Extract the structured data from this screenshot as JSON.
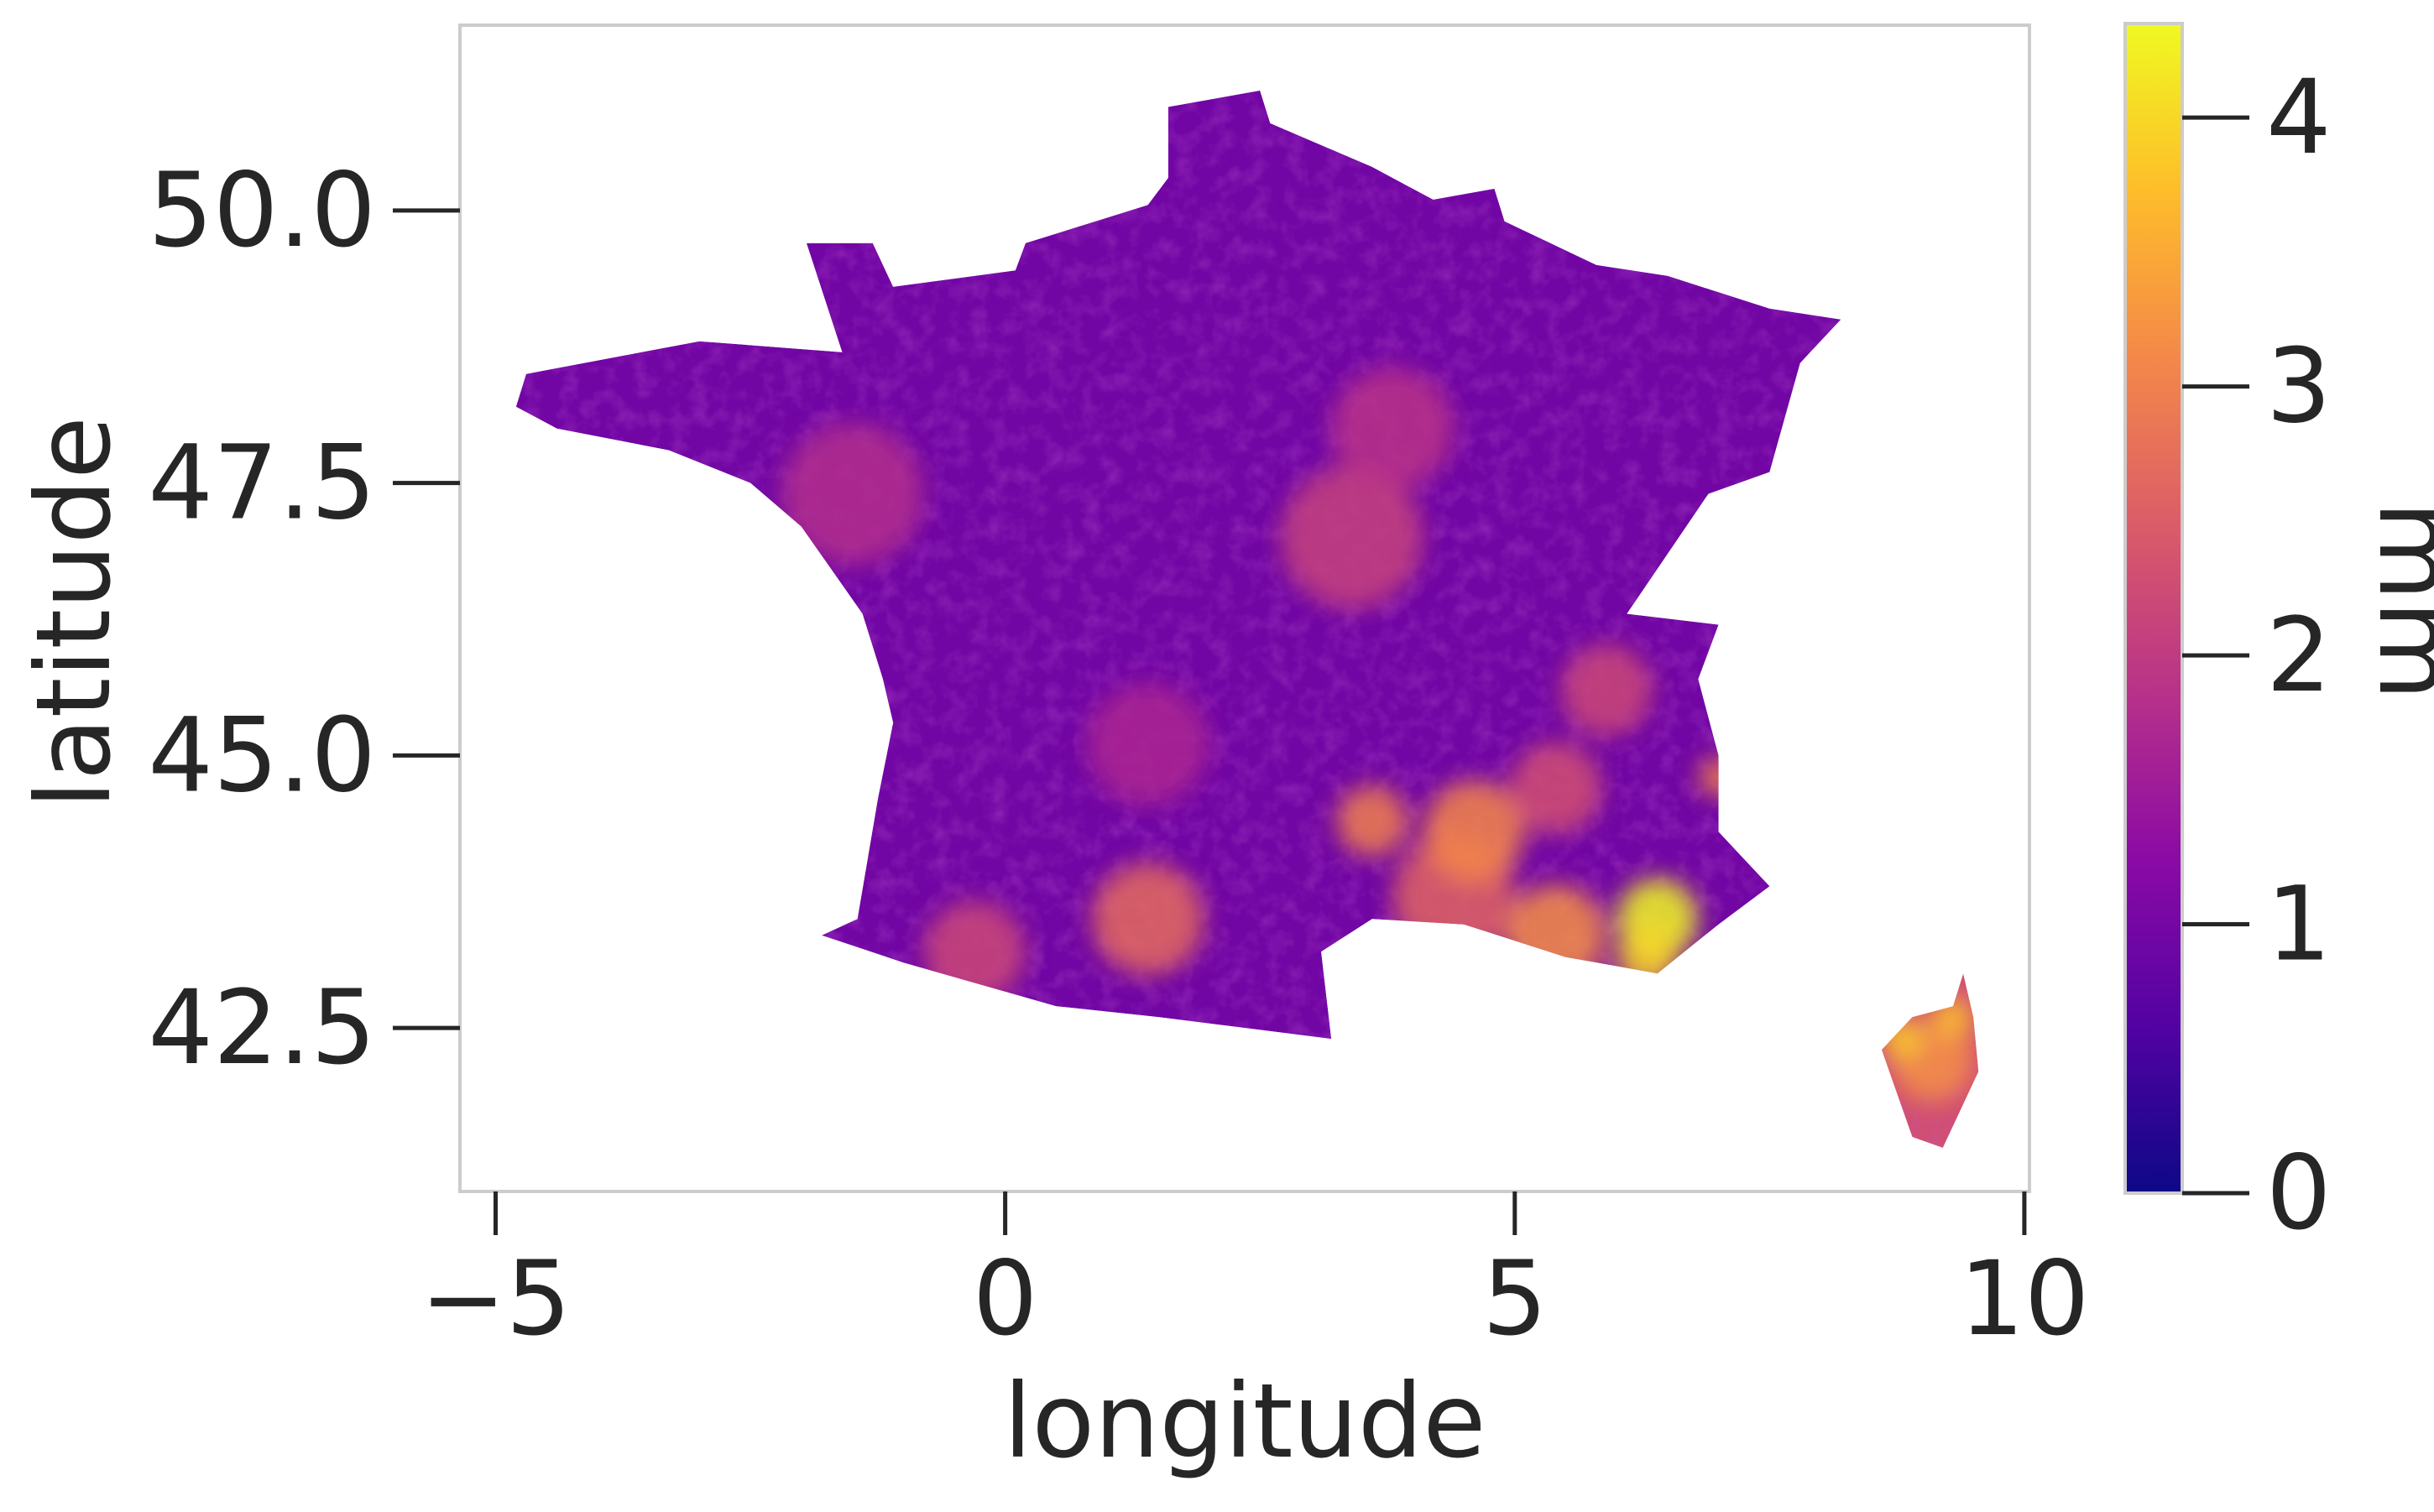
{
  "map": {
    "xlabel": "longitude",
    "ylabel": "latitude",
    "colorbar_label": "mm",
    "x_ticks": [
      {
        "value": -5,
        "label": "−5"
      },
      {
        "value": 0,
        "label": "0"
      },
      {
        "value": 5,
        "label": "5"
      },
      {
        "value": 10,
        "label": "10"
      }
    ],
    "y_ticks": [
      {
        "value": 42.5,
        "label": "42.5"
      },
      {
        "value": 45.0,
        "label": "45.0"
      },
      {
        "value": 47.5,
        "label": "47.5"
      },
      {
        "value": 50.0,
        "label": "50.0"
      }
    ],
    "colorbar_ticks": [
      {
        "value": 0,
        "label": "0"
      },
      {
        "value": 1,
        "label": "1"
      },
      {
        "value": 2,
        "label": "2"
      },
      {
        "value": 3,
        "label": "3"
      },
      {
        "value": 4,
        "label": "4"
      }
    ],
    "colorbar_range": [
      0,
      4.35
    ],
    "colormap": "plasma",
    "x_range": [
      -5.35,
      10.05
    ],
    "y_range": [
      41.0,
      51.7
    ],
    "colors": {
      "frame": "#cccccc",
      "text": "#262626",
      "colormap_stops": [
        "#0d0887",
        "#5302a3",
        "#8b0aa5",
        "#b83289",
        "#db5c68",
        "#f48849",
        "#febd2a",
        "#f0f921"
      ]
    },
    "regions": [
      {
        "name": "mainland-france",
        "base_value": 0.95,
        "outline": [
          [
            2.5,
            51.1
          ],
          [
            1.6,
            50.95
          ],
          [
            1.6,
            50.3
          ],
          [
            1.4,
            50.05
          ],
          [
            0.2,
            49.7
          ],
          [
            0.1,
            49.45
          ],
          [
            -1.1,
            49.3
          ],
          [
            -1.3,
            49.7
          ],
          [
            -1.95,
            49.7
          ],
          [
            -1.6,
            48.7
          ],
          [
            -3.0,
            48.8
          ],
          [
            -4.7,
            48.5
          ],
          [
            -4.8,
            48.2
          ],
          [
            -4.4,
            48.0
          ],
          [
            -3.3,
            47.8
          ],
          [
            -2.5,
            47.5
          ],
          [
            -2.0,
            47.1
          ],
          [
            -1.4,
            46.3
          ],
          [
            -1.2,
            45.7
          ],
          [
            -1.1,
            45.3
          ],
          [
            -1.25,
            44.6
          ],
          [
            -1.45,
            43.5
          ],
          [
            -1.8,
            43.35
          ],
          [
            -1.0,
            43.1
          ],
          [
            0.5,
            42.7
          ],
          [
            1.5,
            42.6
          ],
          [
            3.2,
            42.4
          ],
          [
            3.1,
            43.2
          ],
          [
            3.6,
            43.5
          ],
          [
            4.5,
            43.45
          ],
          [
            5.5,
            43.15
          ],
          [
            6.4,
            43.0
          ],
          [
            7.0,
            43.45
          ],
          [
            7.5,
            43.8
          ],
          [
            7.0,
            44.3
          ],
          [
            7.0,
            45.0
          ],
          [
            6.8,
            45.7
          ],
          [
            7.0,
            46.2
          ],
          [
            6.1,
            46.3
          ],
          [
            6.9,
            47.4
          ],
          [
            7.5,
            47.6
          ],
          [
            7.8,
            48.6
          ],
          [
            8.2,
            49.0
          ],
          [
            7.5,
            49.1
          ],
          [
            6.5,
            49.4
          ],
          [
            5.8,
            49.5
          ],
          [
            4.9,
            49.9
          ],
          [
            4.8,
            50.2
          ],
          [
            4.2,
            50.1
          ],
          [
            3.6,
            50.4
          ],
          [
            2.6,
            50.8
          ]
        ]
      },
      {
        "name": "corsica",
        "base_value": 2.3,
        "outline": [
          [
            9.4,
            43.0
          ],
          [
            9.5,
            42.6
          ],
          [
            9.55,
            42.1
          ],
          [
            9.35,
            41.7
          ],
          [
            9.2,
            41.4
          ],
          [
            8.9,
            41.5
          ],
          [
            8.75,
            41.9
          ],
          [
            8.6,
            42.3
          ],
          [
            8.9,
            42.6
          ],
          [
            9.3,
            42.7
          ]
        ]
      }
    ],
    "hotspots": [
      {
        "lon": 6.4,
        "lat": 43.5,
        "radius": 0.4,
        "value": 4.4
      },
      {
        "lon": 6.3,
        "lat": 43.15,
        "radius": 0.3,
        "value": 4.0
      },
      {
        "lon": 5.4,
        "lat": 43.35,
        "radius": 0.5,
        "value": 3.2
      },
      {
        "lon": 4.4,
        "lat": 43.7,
        "radius": 0.6,
        "value": 2.6
      },
      {
        "lon": 4.6,
        "lat": 44.3,
        "radius": 0.5,
        "value": 3.1
      },
      {
        "lon": 3.6,
        "lat": 44.4,
        "radius": 0.35,
        "value": 3.0
      },
      {
        "lon": 5.4,
        "lat": 44.7,
        "radius": 0.45,
        "value": 2.3
      },
      {
        "lon": 5.9,
        "lat": 45.6,
        "radius": 0.45,
        "value": 2.2
      },
      {
        "lon": 7.0,
        "lat": 44.8,
        "radius": 0.2,
        "value": 3.0
      },
      {
        "lon": 1.4,
        "lat": 43.5,
        "radius": 0.55,
        "value": 2.7
      },
      {
        "lon": -0.3,
        "lat": 43.2,
        "radius": 0.5,
        "value": 2.2
      },
      {
        "lon": 3.4,
        "lat": 47.0,
        "radius": 0.7,
        "value": 2.1
      },
      {
        "lon": 3.8,
        "lat": 48.0,
        "radius": 0.6,
        "value": 1.9
      },
      {
        "lon": -1.5,
        "lat": 47.4,
        "radius": 0.7,
        "value": 1.8
      },
      {
        "lon": 1.4,
        "lat": 45.1,
        "radius": 0.6,
        "value": 1.7
      },
      {
        "lon": 9.1,
        "lat": 42.2,
        "radius": 0.4,
        "value": 3.2
      },
      {
        "lon": 9.3,
        "lat": 42.6,
        "radius": 0.2,
        "value": 3.8
      },
      {
        "lon": 8.8,
        "lat": 42.4,
        "radius": 0.2,
        "value": 3.9
      }
    ]
  }
}
